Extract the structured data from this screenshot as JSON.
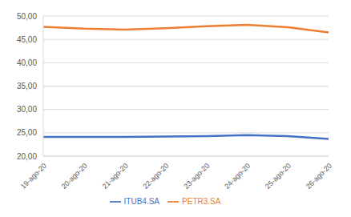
{
  "chart_data": {
    "type": "line",
    "categories": [
      "19-ago-20",
      "20-ago-20",
      "21-ago-20",
      "22-ago-20",
      "23-ago-20",
      "24-ago-20",
      "25-ago-20",
      "26-ago-20"
    ],
    "series": [
      {
        "name": "ITUB4.SA",
        "color": "#4472c4",
        "values": [
          24.1,
          24.1,
          24.1,
          24.2,
          24.3,
          24.5,
          24.3,
          23.7
        ]
      },
      {
        "name": "PETR3.SA",
        "color": "#ed7d31",
        "values": [
          47.7,
          47.3,
          47.1,
          47.4,
          47.8,
          48.1,
          47.6,
          46.5
        ]
      }
    ],
    "ylim": [
      20,
      50
    ],
    "yticks": [
      {
        "value": 20,
        "label": "20,00"
      },
      {
        "value": 25,
        "label": "25,00"
      },
      {
        "value": 30,
        "label": "30,00"
      },
      {
        "value": 35,
        "label": "35,00"
      },
      {
        "value": 40,
        "label": "40,00"
      },
      {
        "value": 45,
        "label": "45,00"
      },
      {
        "value": 50,
        "label": "50,00"
      }
    ],
    "grid": true,
    "legend": "bottom"
  }
}
